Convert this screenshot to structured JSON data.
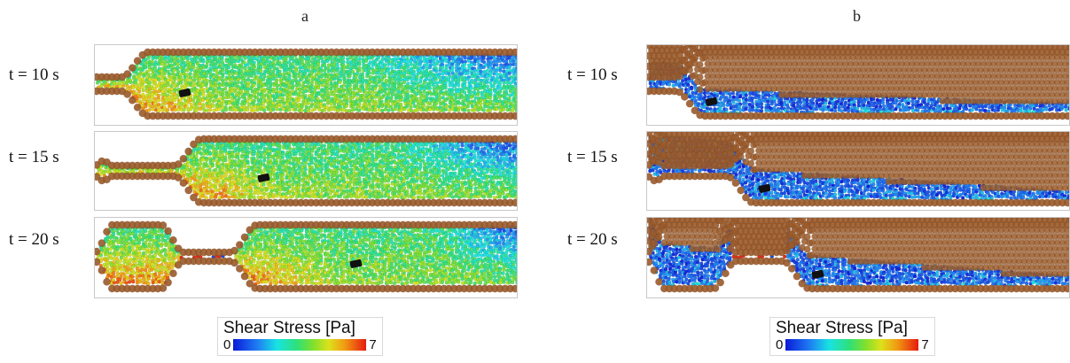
{
  "panels": [
    {
      "letter": "a",
      "colorbar": {
        "title": "Shear Stress [Pa]",
        "min": "0",
        "max": "7"
      },
      "frames": [
        {
          "time": "t = 10 s"
        },
        {
          "time": "t = 15 s"
        },
        {
          "time": "t = 20 s"
        }
      ]
    },
    {
      "letter": "b",
      "colorbar": {
        "title": "Shear Stress [Pa]",
        "min": "0",
        "max": "7"
      },
      "frames": [
        {
          "time": "t = 10 s"
        },
        {
          "time": "t = 15 s"
        },
        {
          "time": "t = 20 s"
        }
      ]
    }
  ],
  "colors": {
    "wall_particle": "#9a5a2a",
    "high_stress_particle": "#e0301c",
    "cell": "#111111"
  }
}
